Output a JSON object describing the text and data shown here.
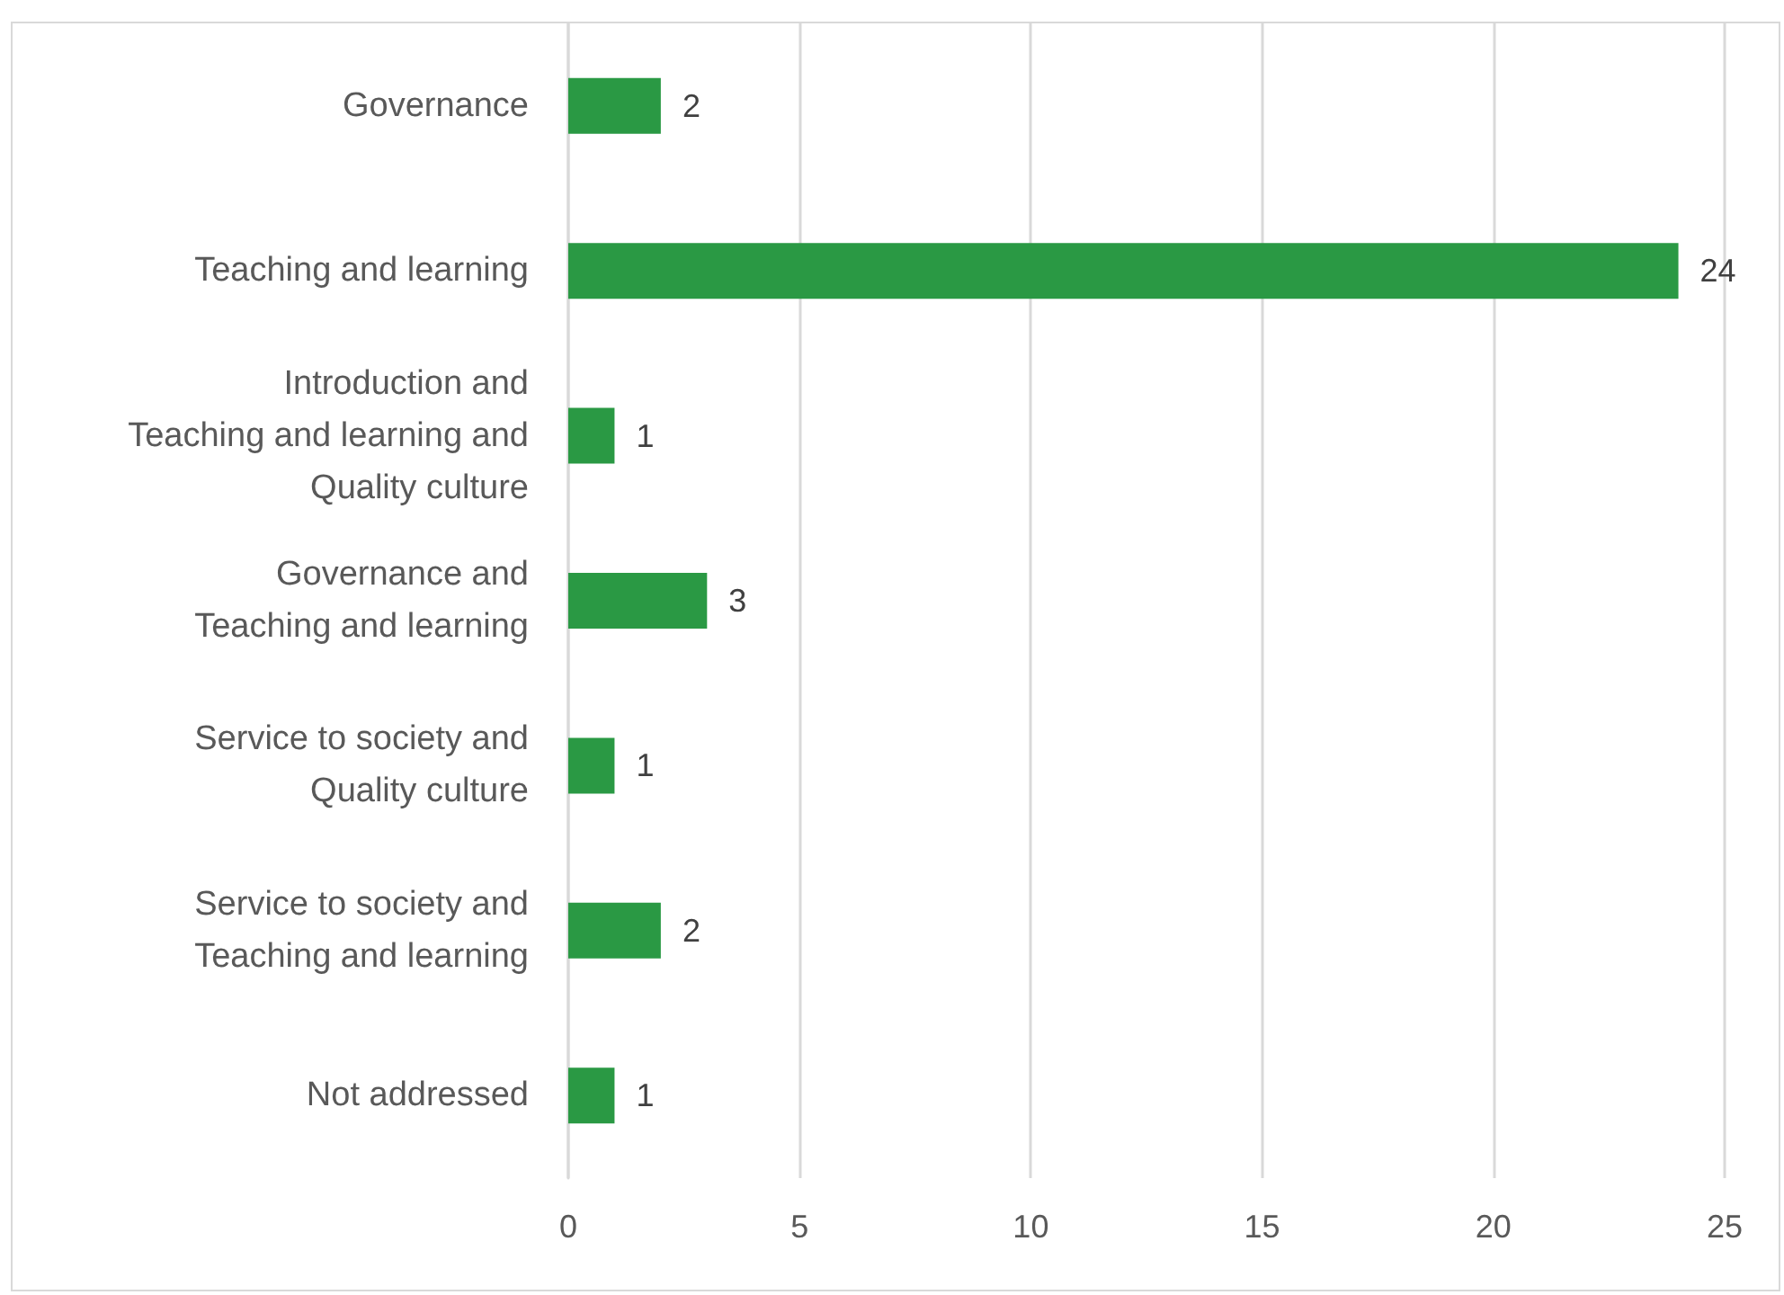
{
  "chart_data": {
    "type": "bar",
    "orientation": "horizontal",
    "categories": [
      "Governance",
      "Teaching and learning",
      "Introduction and\nTeaching and learning and\nQuality culture",
      "Governance and\nTeaching and learning",
      "Service to society and\nQuality culture",
      "Service to society and\nTeaching and learning",
      "Not addressed"
    ],
    "values": [
      2,
      24,
      1,
      3,
      1,
      2,
      1
    ],
    "color": "#2a9944",
    "xlim": [
      0,
      25
    ],
    "xticks": [
      0,
      5,
      10,
      15,
      20,
      25
    ],
    "grid": "x",
    "data_labels": true
  }
}
